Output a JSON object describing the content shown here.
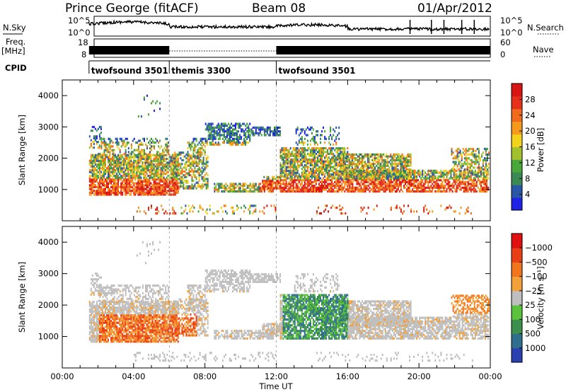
{
  "header": {
    "station": "Prince George (fitACF)",
    "beam": "Beam 08",
    "date": "01/Apr/2012"
  },
  "top_panels": {
    "nsky_label": "N.Sky",
    "nsearch_label": "N.Search",
    "freq_label": "Freq.",
    "freq_unit": "[MHz]",
    "nave_label": "Nave",
    "cpid_label": "CPID",
    "nsky_ticks": [
      "10^5",
      "10^0"
    ],
    "nsearch_ticks": [
      "10^5",
      "10^0"
    ],
    "freq_ticks": [
      "18",
      "8"
    ],
    "nave_ticks": [
      "60",
      "0"
    ],
    "cpid_segments": [
      {
        "label": "twofsound 3501",
        "start": 1.5,
        "end": 6.0
      },
      {
        "label": "themis 3300",
        "start": 6.0,
        "end": 12.0
      },
      {
        "label": "twofsound 3501",
        "start": 12.0,
        "end": 24.0
      }
    ]
  },
  "chart_data": [
    {
      "type": "heatmap",
      "name": "power-panel",
      "xlabel": "",
      "ylabel": "Slant Range [km]",
      "xlim": [
        0,
        24
      ],
      "ylim": [
        0,
        4500
      ],
      "y_ticks": [
        "1000",
        "2000",
        "3000",
        "4000"
      ],
      "colorbar_label": "Power [dB]",
      "colorbar_ticks": [
        "4",
        "8",
        "12",
        "16",
        "20",
        "24",
        "28"
      ],
      "colors": [
        "#1f23e6",
        "#2956a6",
        "#3b8a53",
        "#4aa83a",
        "#a3c12d",
        "#f2d21d",
        "#f59a1d",
        "#ef6b1b",
        "#e6301a",
        "#d81414"
      ]
    },
    {
      "type": "heatmap",
      "name": "velocity-panel",
      "xlabel": "Time UT",
      "ylabel": "Slant Range [km]",
      "xlim": [
        0,
        24
      ],
      "ylim": [
        0,
        4500
      ],
      "y_ticks": [
        "1000",
        "2000",
        "3000",
        "4000"
      ],
      "x_ticks": [
        "00:00",
        "04:00",
        "08:00",
        "12:00",
        "16:00",
        "20:00",
        "00:00"
      ],
      "colorbar_label": "Velocity [m s⁻¹]",
      "colorbar_ticks": [
        "1000",
        "500",
        "100",
        "25",
        "−25",
        "−100",
        "−500",
        "−1000"
      ],
      "colors": [
        "#2a3fb0",
        "#2f6e8c",
        "#3c8f4d",
        "#5bc23b",
        "#bfbfbf",
        "#f2a13a",
        "#f0751e",
        "#ea3f16",
        "#e01010"
      ]
    }
  ]
}
